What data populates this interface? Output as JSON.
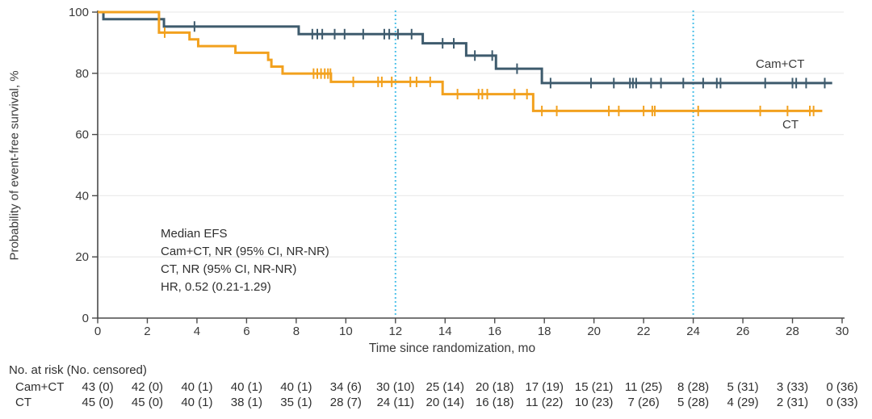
{
  "chart_data": {
    "type": "line",
    "subtype": "kaplan-meier-step",
    "title": "",
    "xlabel": "Time since randomization, mo",
    "ylabel": "Probability of event-free survival, %",
    "xlim": [
      0,
      30
    ],
    "ylim": [
      0,
      100
    ],
    "xticks": [
      0,
      2,
      4,
      6,
      8,
      10,
      12,
      14,
      16,
      18,
      20,
      22,
      24,
      26,
      28,
      30
    ],
    "yticks": [
      0,
      20,
      40,
      60,
      80,
      100
    ],
    "grid": "horizontal-light",
    "reference_lines_x": [
      12,
      24
    ],
    "series": [
      {
        "name": "Cam+CT",
        "color": "#3E5B6D",
        "end": 29.6,
        "steps": [
          [
            0,
            100
          ],
          [
            0.23,
            97.7
          ],
          [
            2.67,
            95.3
          ],
          [
            8.1,
            92.8
          ],
          [
            13.1,
            89.8
          ],
          [
            14.85,
            85.8
          ],
          [
            16.05,
            81.5
          ],
          [
            17.9,
            76.8
          ]
        ],
        "censors": [
          [
            3.9,
            95.3
          ],
          [
            8.65,
            92.8
          ],
          [
            8.85,
            92.8
          ],
          [
            9.05,
            92.8
          ],
          [
            9.55,
            92.8
          ],
          [
            9.95,
            92.8
          ],
          [
            10.7,
            92.8
          ],
          [
            11.55,
            92.8
          ],
          [
            11.75,
            92.8
          ],
          [
            12.1,
            92.8
          ],
          [
            12.65,
            92.8
          ],
          [
            13.9,
            89.8
          ],
          [
            14.35,
            89.8
          ],
          [
            15.2,
            85.8
          ],
          [
            15.9,
            85.8
          ],
          [
            16.9,
            81.5
          ],
          [
            18.25,
            76.8
          ],
          [
            19.88,
            76.8
          ],
          [
            20.8,
            76.8
          ],
          [
            21.45,
            76.8
          ],
          [
            21.57,
            76.8
          ],
          [
            21.7,
            76.8
          ],
          [
            22.3,
            76.8
          ],
          [
            22.7,
            76.8
          ],
          [
            23.6,
            76.8
          ],
          [
            24.4,
            76.8
          ],
          [
            24.95,
            76.8
          ],
          [
            25.1,
            76.8
          ],
          [
            26.9,
            76.8
          ],
          [
            28.0,
            76.8
          ],
          [
            28.15,
            76.8
          ],
          [
            28.55,
            76.8
          ],
          [
            29.3,
            76.8
          ]
        ]
      },
      {
        "name": "CT",
        "color": "#F2A11E",
        "end": 29.2,
        "steps": [
          [
            0,
            100
          ],
          [
            2.47,
            93.3
          ],
          [
            3.7,
            91.1
          ],
          [
            4.05,
            88.9
          ],
          [
            5.55,
            86.7
          ],
          [
            6.87,
            84.4
          ],
          [
            7.0,
            82.2
          ],
          [
            7.45,
            79.9
          ],
          [
            9.4,
            77.2
          ],
          [
            13.9,
            73.2
          ],
          [
            17.55,
            67.7
          ]
        ],
        "censors": [
          [
            2.7,
            93.3
          ],
          [
            8.7,
            79.9
          ],
          [
            8.85,
            79.9
          ],
          [
            9.0,
            79.9
          ],
          [
            9.15,
            79.9
          ],
          [
            9.28,
            79.9
          ],
          [
            9.38,
            79.9
          ],
          [
            10.3,
            77.2
          ],
          [
            11.3,
            77.2
          ],
          [
            11.45,
            77.2
          ],
          [
            11.85,
            77.2
          ],
          [
            12.6,
            77.2
          ],
          [
            12.85,
            77.2
          ],
          [
            13.4,
            77.2
          ],
          [
            14.5,
            73.2
          ],
          [
            15.35,
            73.2
          ],
          [
            15.5,
            73.2
          ],
          [
            15.7,
            73.2
          ],
          [
            16.8,
            73.2
          ],
          [
            17.3,
            73.2
          ],
          [
            17.9,
            67.7
          ],
          [
            18.5,
            67.7
          ],
          [
            20.6,
            67.7
          ],
          [
            21.0,
            67.7
          ],
          [
            22.0,
            67.7
          ],
          [
            22.35,
            67.7
          ],
          [
            22.45,
            67.7
          ],
          [
            24.2,
            67.7
          ],
          [
            26.7,
            67.7
          ],
          [
            27.8,
            67.7
          ],
          [
            28.7,
            67.7
          ],
          [
            28.85,
            67.7
          ]
        ]
      }
    ]
  },
  "annotation": {
    "lines": [
      "Median EFS",
      "Cam+CT, NR (95% CI, NR-NR)",
      "CT, NR (95% CI, NR-NR)",
      "HR, 0.52 (0.21-1.29)"
    ]
  },
  "risk_table": {
    "header": "No. at risk (No. censored)",
    "times": [
      0,
      2,
      4,
      6,
      8,
      10,
      12,
      14,
      16,
      18,
      20,
      22,
      24,
      26,
      28,
      30
    ],
    "rows": [
      {
        "label": "Cam+CT",
        "values": [
          "43 (0)",
          "42 (0)",
          "40 (1)",
          "40 (1)",
          "40 (1)",
          "34 (6)",
          "30 (10)",
          "25 (14)",
          "20 (18)",
          "17 (19)",
          "15 (21)",
          "11 (25)",
          "8 (28)",
          "5 (31)",
          "3 (33)",
          "0 (36)"
        ]
      },
      {
        "label": "CT",
        "values": [
          "45 (0)",
          "45 (0)",
          "40 (1)",
          "38 (1)",
          "35 (1)",
          "28 (7)",
          "24 (11)",
          "20 (14)",
          "16 (18)",
          "11 (22)",
          "10 (23)",
          "7 (26)",
          "5 (28)",
          "4 (29)",
          "2 (31)",
          "0 (33)"
        ]
      }
    ]
  },
  "colors": {
    "cam_ct": "#3E5B6D",
    "ct": "#F2A11E",
    "reference_line": "#4FC1E9",
    "grid": "#ECECEC",
    "axis": "#4A4A4A",
    "text": "#3A3A3A"
  }
}
